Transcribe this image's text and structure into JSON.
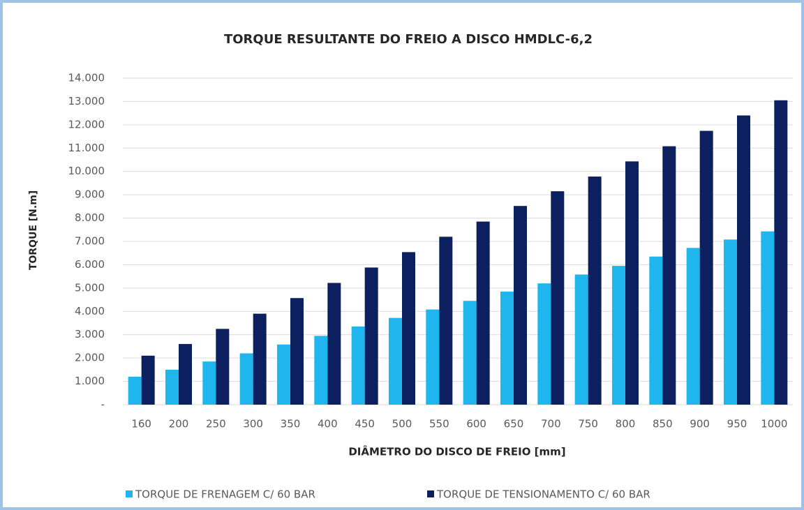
{
  "chart_data": {
    "type": "bar",
    "title": "TORQUE RESULTANTE DO FREIO A DISCO HMDLC-6,2",
    "x_label": "DIÂMETRO DO DISCO DE FREIO [mm]",
    "y_label": "TORQUE [N.m]",
    "categories": [
      "160",
      "200",
      "250",
      "300",
      "350",
      "400",
      "450",
      "500",
      "550",
      "600",
      "650",
      "700",
      "750",
      "800",
      "850",
      "900",
      "950",
      "1000"
    ],
    "series": [
      {
        "name": "TORQUE DE FRENAGEM C/ 60 BAR",
        "color": "#21b5ee",
        "values": [
          1200,
          1500,
          1850,
          2200,
          2580,
          2950,
          3350,
          3720,
          4080,
          4450,
          4850,
          5200,
          5580,
          5950,
          6350,
          6720,
          7080,
          7430
        ]
      },
      {
        "name": "TORQUE DE TENSIONAMENTO C/ 60 BAR",
        "color": "#0c1f5e",
        "values": [
          2100,
          2600,
          3250,
          3900,
          4570,
          5220,
          5880,
          6540,
          7200,
          7850,
          8520,
          9150,
          9780,
          10430,
          11080,
          11740,
          12400,
          13050
        ]
      }
    ],
    "ylim": [
      0,
      14000
    ],
    "yticks": [
      {
        "value": 0,
        "label": "-"
      },
      {
        "value": 1000,
        "label": "1.000"
      },
      {
        "value": 2000,
        "label": "2.000"
      },
      {
        "value": 3000,
        "label": "3.000"
      },
      {
        "value": 4000,
        "label": "4.000"
      },
      {
        "value": 5000,
        "label": "5.000"
      },
      {
        "value": 6000,
        "label": "6.000"
      },
      {
        "value": 7000,
        "label": "7.000"
      },
      {
        "value": 8000,
        "label": "8.000"
      },
      {
        "value": 9000,
        "label": "9.000"
      },
      {
        "value": 10000,
        "label": "10.000"
      },
      {
        "value": 11000,
        "label": "11.000"
      },
      {
        "value": 12000,
        "label": "12.000"
      },
      {
        "value": 13000,
        "label": "13.000"
      },
      {
        "value": 14000,
        "label": "14.000"
      }
    ],
    "grid": true,
    "legend": "bottom"
  }
}
